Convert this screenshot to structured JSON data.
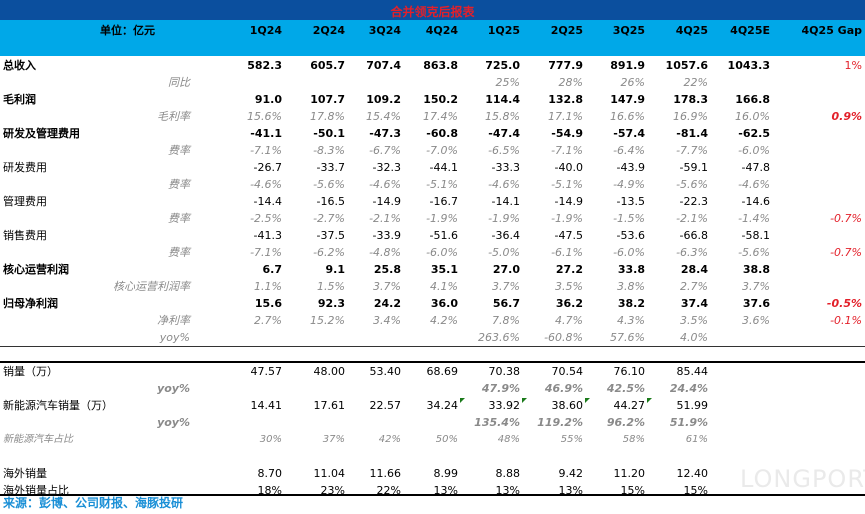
{
  "title": "合并领克后报表",
  "header": {
    "unit": "单位：亿元",
    "columns": [
      "1Q24",
      "2Q24",
      "3Q24",
      "4Q24",
      "1Q25",
      "2Q25",
      "3Q25",
      "4Q25",
      "4Q25E",
      "4Q25 Gap"
    ]
  },
  "rows": [
    {
      "type": "main",
      "label": "总收入",
      "values": [
        "582.3",
        "605.7",
        "707.4",
        "863.8",
        "725.0",
        "777.9",
        "891.9",
        "1057.6",
        "1043.3",
        "1%"
      ]
    },
    {
      "type": "sub",
      "label": "同比",
      "values": [
        "",
        "",
        "",
        "",
        "25%",
        "28%",
        "26%",
        "22%",
        "",
        ""
      ]
    },
    {
      "type": "main",
      "label": "毛利润",
      "values": [
        "91.0",
        "107.7",
        "109.2",
        "150.2",
        "114.4",
        "132.8",
        "147.9",
        "178.3",
        "166.8",
        ""
      ]
    },
    {
      "type": "sub",
      "label": "毛利率",
      "values": [
        "15.6%",
        "17.8%",
        "15.4%",
        "17.4%",
        "15.8%",
        "17.1%",
        "16.6%",
        "16.9%",
        "16.0%",
        "0.9%"
      ],
      "gap_bold": true
    },
    {
      "type": "main",
      "label": "研发及管理费用",
      "values": [
        "-41.1",
        "-50.1",
        "-47.3",
        "-60.8",
        "-47.4",
        "-54.9",
        "-57.4",
        "-81.4",
        "-62.5",
        ""
      ]
    },
    {
      "type": "sub",
      "label": "费率",
      "values": [
        "-7.1%",
        "-8.3%",
        "-6.7%",
        "-7.0%",
        "-6.5%",
        "-7.1%",
        "-6.4%",
        "-7.7%",
        "-6.0%",
        ""
      ]
    },
    {
      "type": "plain",
      "label": "研发费用",
      "values": [
        "-26.7",
        "-33.7",
        "-32.3",
        "-44.1",
        "-33.3",
        "-40.0",
        "-43.9",
        "-59.1",
        "-47.8",
        ""
      ]
    },
    {
      "type": "sub",
      "label": "费率",
      "values": [
        "-4.6%",
        "-5.6%",
        "-4.6%",
        "-5.1%",
        "-4.6%",
        "-5.1%",
        "-4.9%",
        "-5.6%",
        "-4.6%",
        ""
      ]
    },
    {
      "type": "plain",
      "label": "管理费用",
      "values": [
        "-14.4",
        "-16.5",
        "-14.9",
        "-16.7",
        "-14.1",
        "-14.9",
        "-13.5",
        "-22.3",
        "-14.6",
        ""
      ]
    },
    {
      "type": "sub",
      "label": "费率",
      "values": [
        "-2.5%",
        "-2.7%",
        "-2.1%",
        "-1.9%",
        "-1.9%",
        "-1.9%",
        "-1.5%",
        "-2.1%",
        "-1.4%",
        "-0.7%"
      ]
    },
    {
      "type": "plain",
      "label": "销售费用",
      "values": [
        "-41.3",
        "-37.5",
        "-33.9",
        "-51.6",
        "-36.4",
        "-47.5",
        "-53.6",
        "-66.8",
        "-58.1",
        ""
      ]
    },
    {
      "type": "sub",
      "label": "费率",
      "values": [
        "-7.1%",
        "-6.2%",
        "-4.8%",
        "-6.0%",
        "-5.0%",
        "-6.1%",
        "-6.0%",
        "-6.3%",
        "-5.6%",
        "-0.7%"
      ]
    },
    {
      "type": "main",
      "label": "核心运营利润",
      "values": [
        "6.7",
        "9.1",
        "25.8",
        "35.1",
        "27.0",
        "27.2",
        "33.8",
        "28.4",
        "38.8",
        ""
      ]
    },
    {
      "type": "sub",
      "label": "核心运营利润率",
      "values": [
        "1.1%",
        "1.5%",
        "3.7%",
        "4.1%",
        "3.7%",
        "3.5%",
        "3.8%",
        "2.7%",
        "3.7%",
        ""
      ]
    },
    {
      "type": "main",
      "label": "归母净利润",
      "values": [
        "15.6",
        "92.3",
        "24.2",
        "36.0",
        "56.7",
        "36.2",
        "38.2",
        "37.4",
        "37.6",
        "-0.5%"
      ],
      "gap_bold": true
    },
    {
      "type": "sub",
      "label": "净利率",
      "values": [
        "2.7%",
        "15.2%",
        "3.4%",
        "4.2%",
        "7.8%",
        "4.7%",
        "4.3%",
        "3.5%",
        "3.6%",
        "-0.1%"
      ]
    },
    {
      "type": "sub",
      "label": "yoy%",
      "values": [
        "",
        "",
        "",
        "",
        "263.6%",
        "-60.8%",
        "57.6%",
        "4.0%",
        "",
        ""
      ]
    },
    {
      "type": "blank"
    },
    {
      "type": "plain",
      "label": "销量（万）",
      "values": [
        "47.57",
        "48.00",
        "53.40",
        "68.69",
        "70.38",
        "70.54",
        "76.10",
        "85.44",
        "",
        ""
      ],
      "line": "thick"
    },
    {
      "type": "yoyb",
      "label": "yoy%",
      "values": [
        "",
        "",
        "",
        "",
        "47.9%",
        "46.9%",
        "42.5%",
        "24.4%",
        "",
        ""
      ]
    },
    {
      "type": "plain",
      "label": "新能源汽车销量（万）",
      "values": [
        "14.41",
        "17.61",
        "22.57",
        "34.24",
        "33.92",
        "38.60",
        "44.27",
        "51.99",
        "",
        ""
      ],
      "marks": [
        4,
        5,
        6,
        7
      ]
    },
    {
      "type": "yoyb",
      "label": "yoy%",
      "values": [
        "",
        "",
        "",
        "",
        "135.4%",
        "119.2%",
        "96.2%",
        "51.9%",
        "",
        ""
      ]
    },
    {
      "type": "share",
      "label": "新能源汽车占比",
      "values": [
        "30%",
        "37%",
        "42%",
        "50%",
        "48%",
        "55%",
        "58%",
        "61%",
        "",
        ""
      ]
    },
    {
      "type": "blank"
    },
    {
      "type": "plain",
      "label": "海外销量",
      "values": [
        "8.70",
        "11.04",
        "11.66",
        "8.99",
        "8.88",
        "9.42",
        "11.20",
        "12.40",
        "",
        ""
      ]
    },
    {
      "type": "plain",
      "label": "海外销量占比",
      "values": [
        "18%",
        "23%",
        "22%",
        "13%",
        "13%",
        "13%",
        "15%",
        "15%",
        "",
        ""
      ]
    }
  ],
  "source": "来源：彭博、公司财报、海豚投研",
  "watermark": "LONGPORT"
}
